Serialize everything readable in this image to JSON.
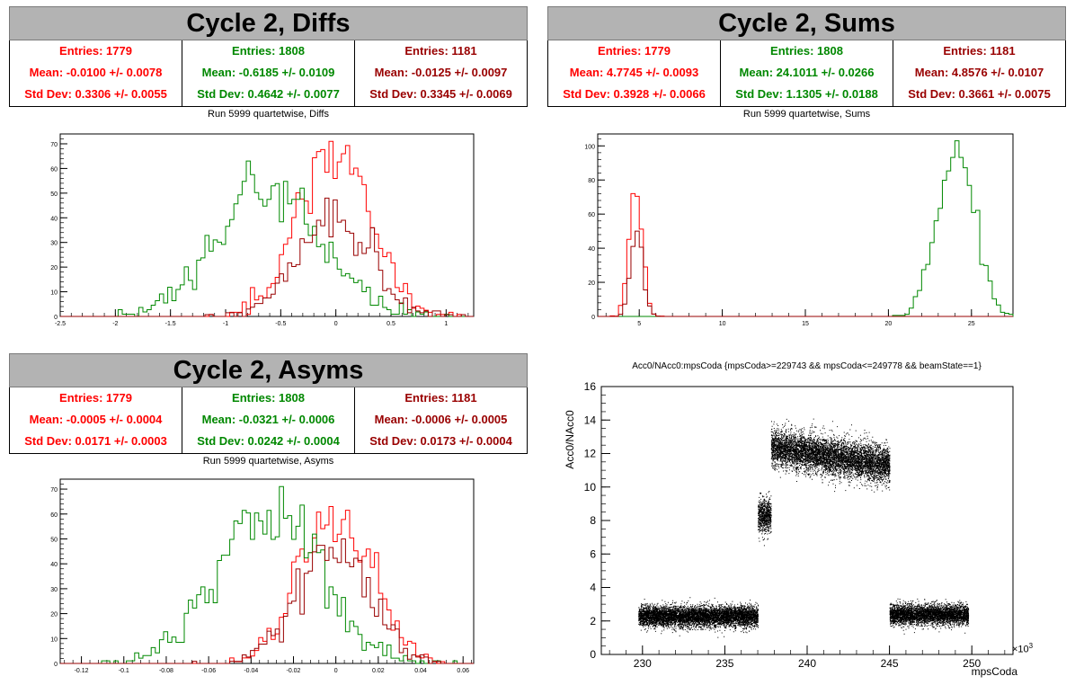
{
  "colors": {
    "red": "#ff0000",
    "green": "#008800",
    "darkred": "#990000",
    "black": "#000000"
  },
  "panels": [
    {
      "id": "diffs",
      "title": "Cycle 2, Diffs",
      "subtitle": "Run 5999 quartetwise, Diffs",
      "stats": [
        {
          "entries": "Entries: 1779",
          "mean": "Mean: -0.0100 +/- 0.0078",
          "std": "Std Dev: 0.3306 +/- 0.0055",
          "color": "#ff0000"
        },
        {
          "entries": "Entries: 1808",
          "mean": "Mean: -0.6185 +/- 0.0109",
          "std": "Std Dev: 0.4642 +/- 0.0077",
          "color": "#008800"
        },
        {
          "entries": "Entries: 1181",
          "mean": "Mean: -0.0125 +/- 0.0097",
          "std": "Std Dev: 0.3345 +/- 0.0069",
          "color": "#990000"
        }
      ]
    },
    {
      "id": "sums",
      "title": "Cycle 2, Sums",
      "subtitle": "Run 5999 quartetwise, Sums",
      "stats": [
        {
          "entries": "Entries: 1779",
          "mean": "Mean: 4.7745 +/- 0.0093",
          "std": "Std Dev: 0.3928 +/- 0.0066",
          "color": "#ff0000"
        },
        {
          "entries": "Entries: 1808",
          "mean": "Mean: 24.1011 +/- 0.0266",
          "std": "Std Dev: 1.1305 +/- 0.0188",
          "color": "#008800"
        },
        {
          "entries": "Entries: 1181",
          "mean": "Mean: 4.8576 +/- 0.0107",
          "std": "Std Dev: 0.3661 +/- 0.0075",
          "color": "#990000"
        }
      ]
    },
    {
      "id": "asyms",
      "title": "Cycle 2, Asyms",
      "subtitle": "Run 5999 quartetwise, Asyms",
      "stats": [
        {
          "entries": "Entries: 1779",
          "mean": "Mean: -0.0005 +/- 0.0004",
          "std": "Std Dev: 0.0171 +/- 0.0003",
          "color": "#ff0000"
        },
        {
          "entries": "Entries: 1808",
          "mean": "Mean: -0.0321 +/- 0.0006",
          "std": "Std Dev: 0.0242 +/- 0.0004",
          "color": "#008800"
        },
        {
          "entries": "Entries: 1181",
          "mean": "Mean: -0.0006 +/- 0.0005",
          "std": "Std Dev: 0.0173 +/- 0.0004",
          "color": "#990000"
        }
      ]
    }
  ],
  "chart_data": [
    {
      "id": "diffs",
      "type": "histogram",
      "title": "Run 5999 quartetwise, Diffs",
      "xlim": [
        -2.5,
        1.25
      ],
      "ylim": [
        0,
        74
      ],
      "xticks": [
        -2.5,
        -2,
        -1.5,
        -1,
        -0.5,
        0,
        0.5,
        1
      ],
      "yticks": [
        0,
        10,
        20,
        30,
        40,
        50,
        60,
        70
      ],
      "series": [
        {
          "color": "#ff0000",
          "mean": -0.01,
          "std": 0.3306,
          "entries": 1779,
          "peak": 71
        },
        {
          "color": "#008800",
          "mean": -0.6185,
          "std": 0.4642,
          "entries": 1808,
          "peak": 63
        },
        {
          "color": "#990000",
          "mean": -0.0125,
          "std": 0.3345,
          "entries": 1181,
          "peak": 48
        }
      ]
    },
    {
      "id": "sums",
      "type": "histogram",
      "title": "Run 5999 quartetwise, Sums",
      "xlim": [
        2.5,
        27.5
      ],
      "ylim": [
        0,
        107
      ],
      "xticks": [
        5,
        10,
        15,
        20,
        25
      ],
      "yticks": [
        0,
        20,
        40,
        60,
        80,
        100
      ],
      "series": [
        {
          "color": "#ff0000",
          "mean": 4.7745,
          "std": 0.3928,
          "entries": 1779,
          "peak": 72
        },
        {
          "color": "#008800",
          "mean": 24.1011,
          "std": 1.1305,
          "entries": 1808,
          "peak": 103
        },
        {
          "color": "#990000",
          "mean": 4.8576,
          "std": 0.3661,
          "entries": 1181,
          "peak": 50
        }
      ]
    },
    {
      "id": "asyms",
      "type": "histogram",
      "title": "Run 5999 quartetwise, Asyms",
      "xlim": [
        -0.13,
        0.065
      ],
      "ylim": [
        0,
        74
      ],
      "xticks": [
        -0.12,
        -0.1,
        -0.08,
        -0.06,
        -0.04,
        -0.02,
        0,
        0.02,
        0.04,
        0.06
      ],
      "yticks": [
        0,
        10,
        20,
        30,
        40,
        50,
        60,
        70
      ],
      "series": [
        {
          "color": "#ff0000",
          "mean": -0.0005,
          "std": 0.0171,
          "entries": 1779,
          "peak": 63
        },
        {
          "color": "#008800",
          "mean": -0.0321,
          "std": 0.0242,
          "entries": 1808,
          "peak": 71
        },
        {
          "color": "#990000",
          "mean": -0.0006,
          "std": 0.0173,
          "entries": 1181,
          "peak": 50
        }
      ]
    },
    {
      "id": "scatter",
      "type": "scatter",
      "title": "Acc0/NAcc0:mpsCoda {mpsCoda>=229743 && mpsCoda<=249778 && beamState==1}",
      "xlabel": "mpsCoda",
      "ylabel": "Acc0/NAcc0",
      "x_exponent": "×10",
      "x_exponent_power": "3",
      "xlim": [
        227.5,
        252.5
      ],
      "ylim": [
        0,
        16
      ],
      "xticks": [
        230,
        235,
        240,
        245,
        250
      ],
      "yticks": [
        0,
        2,
        4,
        6,
        8,
        10,
        12,
        14,
        16
      ],
      "clusters": [
        {
          "x_range": [
            229.743,
            237.0
          ],
          "y_center": 2.3,
          "y_spread": 0.3
        },
        {
          "x_range": [
            237.0,
            237.8
          ],
          "y_center": 8.3,
          "y_spread": 0.5
        },
        {
          "x_range": [
            237.8,
            245.0
          ],
          "y_center_start": 12.4,
          "y_center_end": 11.3,
          "y_spread": 0.55
        },
        {
          "x_range": [
            245.0,
            249.778
          ],
          "y_center": 2.4,
          "y_spread": 0.3
        }
      ]
    }
  ]
}
